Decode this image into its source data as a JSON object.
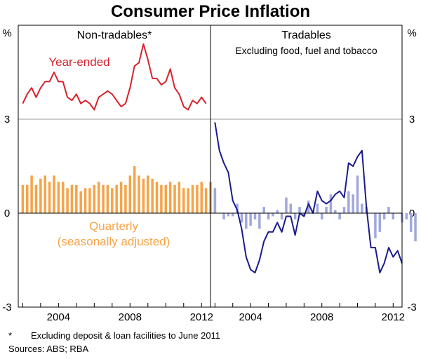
{
  "chart_data": {
    "title": "Consumer Price Inflation",
    "unit_label": "%",
    "y_ticks": [
      3,
      0,
      -3
    ],
    "ylim": [
      -3,
      6
    ],
    "x_ticks": [
      "2004",
      "2008",
      "2012"
    ],
    "panels": [
      {
        "title": "Non-tradables*",
        "subtitle": "",
        "x_range": [
          2001.75,
          2012.5
        ],
        "series": [
          {
            "name": "Year-ended",
            "type": "line",
            "color": "#d6232c",
            "start": 2002.0,
            "step": 0.25,
            "values": [
              3.5,
              3.8,
              4.0,
              3.7,
              4.0,
              4.2,
              4.2,
              4.5,
              4.2,
              4.2,
              3.7,
              3.6,
              3.8,
              3.5,
              3.6,
              3.5,
              3.3,
              3.7,
              3.8,
              3.9,
              3.8,
              3.6,
              3.4,
              3.5,
              4.0,
              4.7,
              4.8,
              5.4,
              4.9,
              4.3,
              4.3,
              4.1,
              4.2,
              4.6,
              4.0,
              3.8,
              3.4,
              3.3,
              3.6,
              3.5,
              3.7,
              3.5
            ]
          },
          {
            "name": "Quarterly",
            "name_line2": "(seasonally adjusted)",
            "type": "bar",
            "color": "#f6a348",
            "start": 2002.0,
            "step": 0.25,
            "values": [
              0.9,
              0.9,
              1.2,
              0.9,
              1.1,
              1.2,
              1.0,
              1.2,
              1.0,
              1.0,
              0.8,
              0.9,
              0.9,
              0.7,
              0.8,
              0.8,
              0.9,
              1.0,
              0.9,
              0.9,
              0.8,
              0.9,
              1.0,
              0.9,
              1.2,
              1.5,
              1.2,
              1.1,
              1.2,
              1.1,
              1.0,
              0.9,
              0.9,
              1.0,
              0.9,
              1.0,
              0.8,
              0.8,
              0.9,
              0.9,
              1.0,
              0.8,
              1.0,
              0.7
            ]
          }
        ]
      },
      {
        "title": "Tradables",
        "subtitle": "Excluding food, fuel and tobacco",
        "x_range": [
          2001.75,
          2012.5
        ],
        "series": [
          {
            "name": "Year-ended",
            "type": "line",
            "color": "#1a1a8e",
            "start": 2002.0,
            "step": 0.25,
            "values": [
              2.9,
              2.0,
              1.6,
              1.3,
              0.4,
              0.1,
              -0.5,
              -1.4,
              -1.8,
              -1.9,
              -1.5,
              -0.9,
              -0.6,
              -0.6,
              -0.3,
              -0.6,
              -0.1,
              -0.1,
              -0.7,
              0.0,
              -0.1,
              0.3,
              0.0,
              0.7,
              0.4,
              0.3,
              0.4,
              0.6,
              0.7,
              0.5,
              1.6,
              1.5,
              1.8,
              2.0,
              0.2,
              -1.1,
              -1.1,
              -1.9,
              -1.6,
              -1.1,
              -1.4,
              -1.2,
              -1.6
            ]
          },
          {
            "name": "Quarterly",
            "type": "bar",
            "color": "#a0a8dc",
            "start": 2002.0,
            "step": 0.25,
            "values": [
              0.8,
              0.0,
              -0.2,
              -0.1,
              -0.1,
              0.3,
              -0.3,
              -0.5,
              -0.4,
              -0.2,
              -0.5,
              0.2,
              -0.2,
              -0.1,
              0.1,
              -0.2,
              0.5,
              0.3,
              -0.2,
              0.2,
              -0.1,
              0.4,
              0.1,
              0.3,
              -0.2,
              0.2,
              0.6,
              0.1,
              -0.2,
              0.2,
              0.7,
              0.6,
              1.2,
              0.3,
              0.2,
              0.0,
              -0.8,
              -0.6,
              -0.2,
              0.2,
              -0.2,
              0.0,
              -0.3,
              -0.2,
              -0.6,
              -0.9
            ]
          }
        ]
      }
    ],
    "footnote": "Excluding deposit & loan facilities to June 2011",
    "footnote_mark": "*",
    "sources": "Sources: ABS; RBA"
  }
}
